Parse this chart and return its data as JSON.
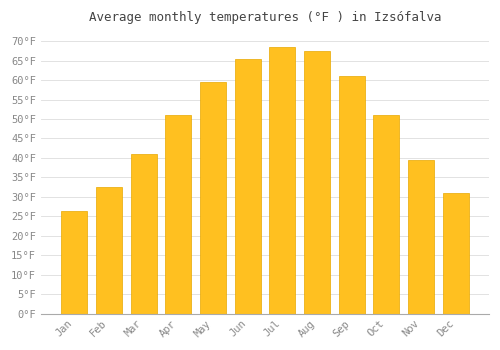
{
  "months": [
    "Jan",
    "Feb",
    "Mar",
    "Apr",
    "May",
    "Jun",
    "Jul",
    "Aug",
    "Sep",
    "Oct",
    "Nov",
    "Dec"
  ],
  "values": [
    26.5,
    32.5,
    41.0,
    51.0,
    59.5,
    65.5,
    68.5,
    67.5,
    61.0,
    51.0,
    39.5,
    31.0
  ],
  "bar_color": "#FFC020",
  "bar_edge_color": "#E8A800",
  "background_color": "#FFFFFF",
  "grid_color": "#DDDDDD",
  "title": "Average monthly temperatures (°F ) in Izsófalva",
  "title_fontsize": 9,
  "yticks": [
    0,
    5,
    10,
    15,
    20,
    25,
    30,
    35,
    40,
    45,
    50,
    55,
    60,
    65,
    70
  ],
  "ylim": [
    0,
    73
  ],
  "tick_label_color": "#888888",
  "axis_label_fontsize": 7.5,
  "font_family": "monospace"
}
